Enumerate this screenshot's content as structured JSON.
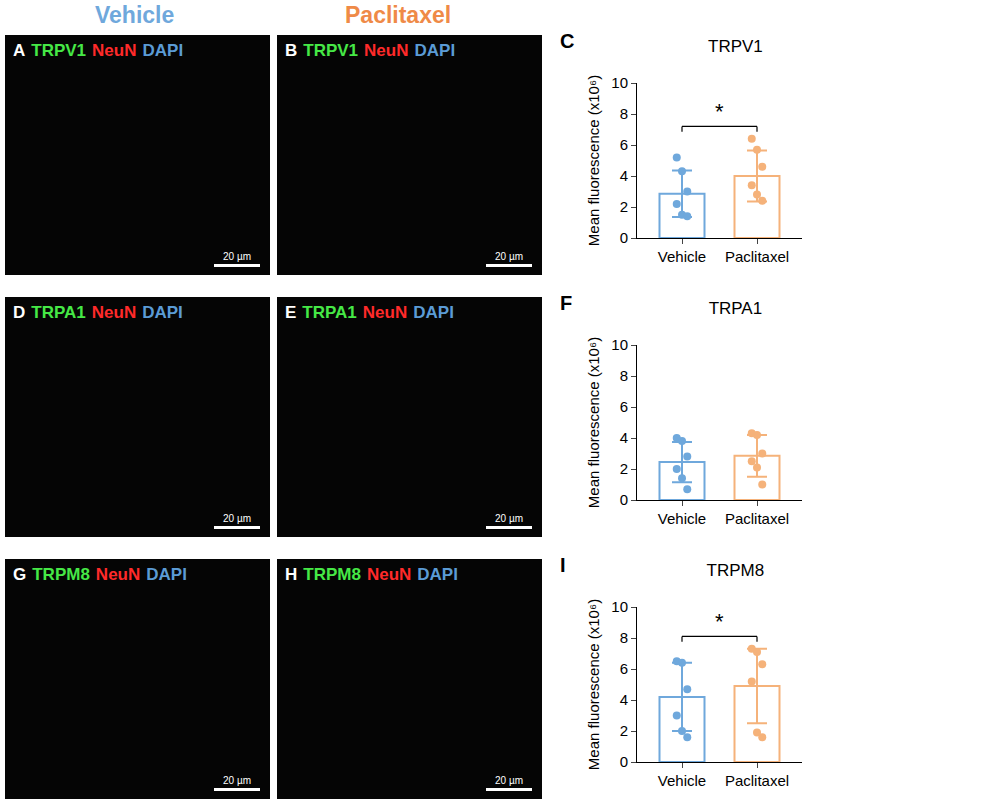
{
  "column_headers": [
    {
      "text": "Vehicle",
      "color": "#6fa8dc"
    },
    {
      "text": "Paclitaxel",
      "color": "#ef8a47"
    }
  ],
  "image_panels": [
    {
      "panel_label": "A",
      "labels": [
        {
          "text": "TRPV1",
          "color": "#46e846"
        },
        {
          "text": "NeuN",
          "color": "#ff2a2a"
        },
        {
          "text": "DAPI",
          "color": "#5b9bd5"
        }
      ],
      "scale_bar": "20 µm"
    },
    {
      "panel_label": "B",
      "labels": [
        {
          "text": "TRPV1",
          "color": "#46e846"
        },
        {
          "text": "NeuN",
          "color": "#ff2a2a"
        },
        {
          "text": "DAPI",
          "color": "#5b9bd5"
        }
      ],
      "scale_bar": "20 µm"
    },
    {
      "panel_label": "D",
      "labels": [
        {
          "text": "TRPA1",
          "color": "#46e846"
        },
        {
          "text": "NeuN",
          "color": "#ff2a2a"
        },
        {
          "text": "DAPI",
          "color": "#5b9bd5"
        }
      ],
      "scale_bar": "20 µm"
    },
    {
      "panel_label": "E",
      "labels": [
        {
          "text": "TRPA1",
          "color": "#46e846"
        },
        {
          "text": "NeuN",
          "color": "#ff2a2a"
        },
        {
          "text": "DAPI",
          "color": "#5b9bd5"
        }
      ],
      "scale_bar": "20 µm"
    },
    {
      "panel_label": "G",
      "labels": [
        {
          "text": "TRPM8",
          "color": "#46e846"
        },
        {
          "text": "NeuN",
          "color": "#ff2a2a"
        },
        {
          "text": "DAPI",
          "color": "#5b9bd5"
        }
      ],
      "scale_bar": "20 µm"
    },
    {
      "panel_label": "H",
      "labels": [
        {
          "text": "TRPM8",
          "color": "#46e846"
        },
        {
          "text": "NeuN",
          "color": "#ff2a2a"
        },
        {
          "text": "DAPI",
          "color": "#5b9bd5"
        }
      ],
      "scale_bar": "20 µm"
    }
  ],
  "chart_data": [
    {
      "panel_label": "C",
      "type": "bar",
      "title": "TRPV1",
      "y_label": "Mean fluorescence (x10⁶)",
      "categories": [
        "Vehicle",
        "Paclitaxel"
      ],
      "values": [
        2.85,
        4.0
      ],
      "error": [
        1.5,
        1.65
      ],
      "points": [
        [
          5.2,
          4.3,
          3.0,
          2.2,
          1.5,
          1.4
        ],
        [
          6.4,
          5.7,
          4.6,
          3.4,
          2.8,
          2.4
        ]
      ],
      "colors": [
        "#6fa8dc",
        "#f5b27a"
      ],
      "ylim": [
        0,
        10
      ],
      "yticks": [
        0,
        2,
        4,
        6,
        8,
        10
      ],
      "grid": false,
      "annotations": [
        "*"
      ]
    },
    {
      "panel_label": "F",
      "type": "bar",
      "title": "TRPA1",
      "y_label": "Mean fluorescence (x10⁶)",
      "categories": [
        "Vehicle",
        "Paclitaxel"
      ],
      "values": [
        2.45,
        2.85
      ],
      "error": [
        1.3,
        1.35
      ],
      "points": [
        [
          4.0,
          3.8,
          2.8,
          2.0,
          1.4,
          0.7
        ],
        [
          4.3,
          4.2,
          3.0,
          2.5,
          2.1,
          1.0
        ]
      ],
      "colors": [
        "#6fa8dc",
        "#f5b27a"
      ],
      "ylim": [
        0,
        10
      ],
      "yticks": [
        0,
        2,
        4,
        6,
        8,
        10
      ],
      "grid": false,
      "annotations": []
    },
    {
      "panel_label": "I",
      "type": "bar",
      "title": "TRPM8",
      "y_label": "Mean fluorescence (x10⁶)",
      "categories": [
        "Vehicle",
        "Paclitaxel"
      ],
      "values": [
        4.2,
        4.9
      ],
      "error": [
        2.2,
        2.4
      ],
      "points": [
        [
          6.5,
          6.4,
          4.7,
          3.0,
          2.0,
          1.6
        ],
        [
          7.3,
          7.1,
          6.3,
          5.2,
          1.9,
          1.6
        ]
      ],
      "colors": [
        "#6fa8dc",
        "#f5b27a"
      ],
      "ylim": [
        0,
        10
      ],
      "yticks": [
        0,
        2,
        4,
        6,
        8,
        10
      ],
      "grid": false,
      "annotations": [
        "*"
      ]
    }
  ]
}
